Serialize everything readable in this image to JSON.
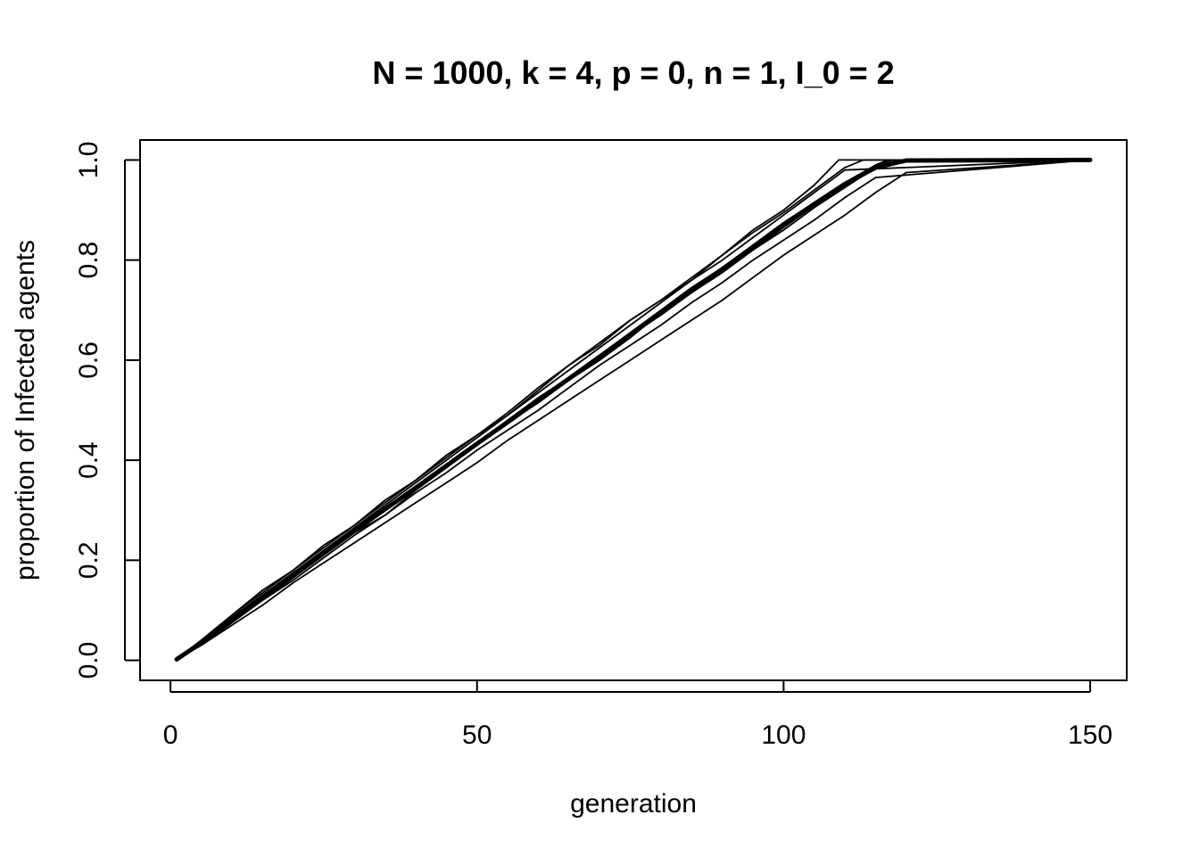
{
  "chart_data": {
    "type": "line",
    "title": "N = 1000, k = 4, p = 0, n = 1, I_0 = 2",
    "xlabel": "generation",
    "ylabel": "proportion of Infected agents",
    "xlim": [
      -4.96,
      155.96
    ],
    "ylim": [
      -0.04,
      1.04
    ],
    "xticks": [
      0,
      50,
      100,
      150
    ],
    "xtick_labels": [
      "0",
      "50",
      "100",
      "150"
    ],
    "yticks": [
      0.0,
      0.2,
      0.4,
      0.6,
      0.8,
      1.0
    ],
    "ytick_labels": [
      "0.0",
      "0.2",
      "0.4",
      "0.6",
      "0.8",
      "1.0"
    ],
    "grid": false,
    "legend": "none",
    "series": [
      {
        "kind": "run",
        "x": [
          1,
          5,
          10,
          15,
          20,
          25,
          30,
          35,
          40,
          45,
          50,
          55,
          60,
          65,
          70,
          75,
          80,
          85,
          90,
          95,
          100,
          105,
          109,
          150
        ],
        "values": [
          0.002,
          0.04,
          0.09,
          0.14,
          0.18,
          0.23,
          0.27,
          0.32,
          0.36,
          0.41,
          0.45,
          0.49,
          0.54,
          0.59,
          0.63,
          0.68,
          0.72,
          0.76,
          0.81,
          0.86,
          0.9,
          0.95,
          1.0,
          1.0
        ]
      },
      {
        "kind": "run",
        "x": [
          1,
          5,
          10,
          15,
          20,
          25,
          30,
          35,
          40,
          45,
          50,
          55,
          60,
          65,
          70,
          75,
          80,
          85,
          90,
          95,
          100,
          105,
          110,
          150
        ],
        "values": [
          0.002,
          0.035,
          0.085,
          0.13,
          0.175,
          0.22,
          0.265,
          0.31,
          0.355,
          0.4,
          0.445,
          0.49,
          0.535,
          0.58,
          0.625,
          0.67,
          0.715,
          0.76,
          0.8,
          0.845,
          0.89,
          0.935,
          0.98,
          1.0
        ]
      },
      {
        "kind": "run",
        "x": [
          1,
          5,
          10,
          15,
          20,
          25,
          30,
          35,
          40,
          45,
          50,
          55,
          60,
          65,
          70,
          75,
          80,
          85,
          90,
          95,
          100,
          105,
          110,
          115,
          150
        ],
        "values": [
          0.002,
          0.03,
          0.075,
          0.12,
          0.16,
          0.205,
          0.25,
          0.29,
          0.335,
          0.375,
          0.42,
          0.46,
          0.5,
          0.545,
          0.59,
          0.63,
          0.67,
          0.715,
          0.755,
          0.8,
          0.84,
          0.88,
          0.925,
          0.965,
          1.0
        ]
      },
      {
        "kind": "run",
        "x": [
          1,
          5,
          10,
          15,
          20,
          25,
          30,
          35,
          40,
          45,
          50,
          55,
          60,
          65,
          70,
          75,
          80,
          85,
          90,
          95,
          100,
          105,
          110,
          115,
          120,
          150
        ],
        "values": [
          0.002,
          0.03,
          0.07,
          0.11,
          0.155,
          0.195,
          0.235,
          0.275,
          0.315,
          0.355,
          0.395,
          0.44,
          0.48,
          0.52,
          0.56,
          0.6,
          0.64,
          0.68,
          0.72,
          0.765,
          0.81,
          0.85,
          0.89,
          0.935,
          0.975,
          1.0
        ]
      },
      {
        "kind": "run",
        "x": [
          1,
          5,
          10,
          15,
          20,
          25,
          30,
          35,
          40,
          45,
          50,
          55,
          60,
          65,
          70,
          75,
          80,
          85,
          90,
          95,
          100,
          105,
          110,
          115,
          119,
          150
        ],
        "values": [
          0.002,
          0.032,
          0.078,
          0.12,
          0.165,
          0.21,
          0.255,
          0.29,
          0.34,
          0.385,
          0.43,
          0.475,
          0.515,
          0.56,
          0.6,
          0.645,
          0.695,
          0.735,
          0.775,
          0.82,
          0.86,
          0.905,
          0.945,
          0.985,
          1.0,
          1.0
        ]
      },
      {
        "kind": "run",
        "x": [
          1,
          5,
          10,
          15,
          20,
          25,
          30,
          35,
          40,
          45,
          50,
          55,
          60,
          65,
          70,
          75,
          80,
          85,
          90,
          95,
          100,
          105,
          110,
          115,
          118,
          150
        ],
        "values": [
          0.002,
          0.038,
          0.085,
          0.13,
          0.17,
          0.215,
          0.26,
          0.305,
          0.345,
          0.39,
          0.435,
          0.48,
          0.525,
          0.565,
          0.61,
          0.655,
          0.7,
          0.745,
          0.785,
          0.83,
          0.875,
          0.915,
          0.955,
          0.99,
          1.0,
          1.0
        ]
      },
      {
        "kind": "run",
        "x": [
          1,
          5,
          10,
          15,
          20,
          25,
          30,
          35,
          40,
          45,
          50,
          55,
          60,
          65,
          70,
          75,
          80,
          85,
          90,
          95,
          100,
          105,
          110,
          113,
          150
        ],
        "values": [
          0.002,
          0.04,
          0.09,
          0.135,
          0.18,
          0.225,
          0.27,
          0.315,
          0.36,
          0.405,
          0.45,
          0.495,
          0.545,
          0.59,
          0.635,
          0.68,
          0.72,
          0.765,
          0.81,
          0.855,
          0.895,
          0.94,
          0.985,
          1.0,
          1.0
        ]
      },
      {
        "kind": "run",
        "x": [
          1,
          5,
          10,
          15,
          20,
          25,
          30,
          35,
          40,
          45,
          50,
          55,
          60,
          65,
          70,
          75,
          80,
          85,
          90,
          95,
          100,
          105,
          110,
          115,
          117,
          150
        ],
        "values": [
          0.002,
          0.034,
          0.08,
          0.125,
          0.17,
          0.215,
          0.26,
          0.3,
          0.345,
          0.39,
          0.43,
          0.475,
          0.52,
          0.56,
          0.605,
          0.65,
          0.69,
          0.735,
          0.78,
          0.82,
          0.865,
          0.91,
          0.95,
          0.99,
          1.0,
          1.0
        ]
      },
      {
        "kind": "mean",
        "x": [
          1,
          5,
          10,
          15,
          20,
          25,
          30,
          35,
          40,
          45,
          50,
          55,
          60,
          65,
          70,
          75,
          80,
          85,
          90,
          95,
          100,
          105,
          110,
          115,
          120,
          150
        ],
        "values": [
          0.002,
          0.035,
          0.082,
          0.127,
          0.171,
          0.215,
          0.259,
          0.302,
          0.345,
          0.389,
          0.433,
          0.476,
          0.52,
          0.563,
          0.607,
          0.651,
          0.695,
          0.739,
          0.782,
          0.826,
          0.869,
          0.912,
          0.952,
          0.985,
          0.999,
          1.0
        ]
      }
    ]
  }
}
